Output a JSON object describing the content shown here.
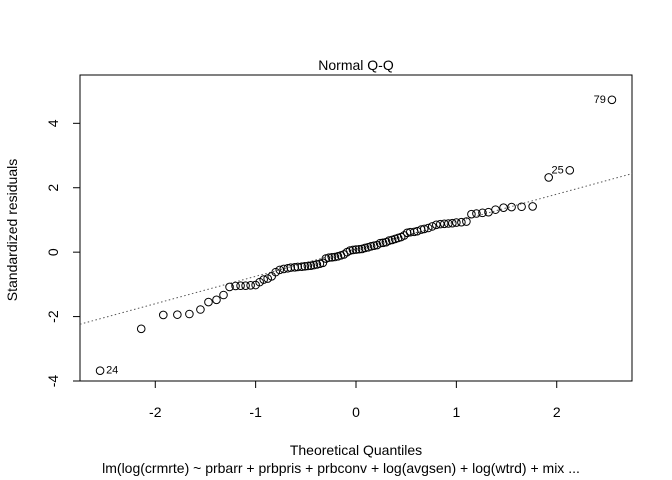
{
  "chart_data": {
    "type": "scatter",
    "title": "Normal Q-Q",
    "xlabel": "Theoretical Quantiles",
    "ylabel": "Standardized residuals",
    "subtitle": "lm(log(crmrte) ~ prbarr + prbpris + prbconv + log(avgsen) + log(wtrd) + mix ...",
    "xlim": [
      -2.75,
      2.75
    ],
    "ylim": [
      -4.0,
      5.5
    ],
    "x_ticks": [
      -2,
      -1,
      0,
      1,
      2
    ],
    "y_ticks": [
      -4,
      -2,
      0,
      2,
      4
    ],
    "grid": false,
    "reference_line": {
      "intercept": 0.1,
      "slope": 0.85,
      "style": "dotted",
      "color": "#555555"
    },
    "labeled_points": [
      {
        "label": "79",
        "x": 2.55,
        "y": 4.73
      },
      {
        "label": "25",
        "x": 2.13,
        "y": 2.54
      },
      {
        "label": "24",
        "x": -2.55,
        "y": -3.68
      }
    ],
    "points": [
      [
        -2.55,
        -3.68
      ],
      [
        -2.14,
        -2.38
      ],
      [
        -1.92,
        -1.95
      ],
      [
        -1.78,
        -1.94
      ],
      [
        -1.66,
        -1.92
      ],
      [
        -1.55,
        -1.78
      ],
      [
        -1.47,
        -1.55
      ],
      [
        -1.39,
        -1.48
      ],
      [
        -1.32,
        -1.33
      ],
      [
        -1.26,
        -1.08
      ],
      [
        -1.2,
        -1.05
      ],
      [
        -1.15,
        -1.04
      ],
      [
        -1.1,
        -1.04
      ],
      [
        -1.05,
        -1.03
      ],
      [
        -1.0,
        -1.02
      ],
      [
        -0.96,
        -0.93
      ],
      [
        -0.92,
        -0.85
      ],
      [
        -0.88,
        -0.82
      ],
      [
        -0.84,
        -0.75
      ],
      [
        -0.8,
        -0.62
      ],
      [
        -0.76,
        -0.55
      ],
      [
        -0.72,
        -0.52
      ],
      [
        -0.68,
        -0.5
      ],
      [
        -0.65,
        -0.48
      ],
      [
        -0.61,
        -0.47
      ],
      [
        -0.58,
        -0.46
      ],
      [
        -0.54,
        -0.45
      ],
      [
        -0.51,
        -0.44
      ],
      [
        -0.48,
        -0.43
      ],
      [
        -0.45,
        -0.42
      ],
      [
        -0.42,
        -0.4
      ],
      [
        -0.39,
        -0.38
      ],
      [
        -0.36,
        -0.36
      ],
      [
        -0.33,
        -0.33
      ],
      [
        -0.3,
        -0.2
      ],
      [
        -0.27,
        -0.17
      ],
      [
        -0.24,
        -0.16
      ],
      [
        -0.21,
        -0.15
      ],
      [
        -0.18,
        -0.13
      ],
      [
        -0.15,
        -0.1
      ],
      [
        -0.12,
        -0.07
      ],
      [
        -0.09,
        0.0
      ],
      [
        -0.06,
        0.05
      ],
      [
        -0.03,
        0.07
      ],
      [
        0.0,
        0.08
      ],
      [
        0.03,
        0.09
      ],
      [
        0.06,
        0.1
      ],
      [
        0.09,
        0.13
      ],
      [
        0.12,
        0.15
      ],
      [
        0.15,
        0.18
      ],
      [
        0.18,
        0.2
      ],
      [
        0.21,
        0.22
      ],
      [
        0.24,
        0.28
      ],
      [
        0.27,
        0.29
      ],
      [
        0.3,
        0.31
      ],
      [
        0.33,
        0.36
      ],
      [
        0.36,
        0.38
      ],
      [
        0.39,
        0.41
      ],
      [
        0.42,
        0.44
      ],
      [
        0.45,
        0.47
      ],
      [
        0.48,
        0.52
      ],
      [
        0.51,
        0.6
      ],
      [
        0.54,
        0.62
      ],
      [
        0.58,
        0.63
      ],
      [
        0.61,
        0.65
      ],
      [
        0.65,
        0.7
      ],
      [
        0.68,
        0.72
      ],
      [
        0.72,
        0.75
      ],
      [
        0.76,
        0.8
      ],
      [
        0.8,
        0.85
      ],
      [
        0.84,
        0.87
      ],
      [
        0.88,
        0.88
      ],
      [
        0.92,
        0.89
      ],
      [
        0.96,
        0.9
      ],
      [
        1.0,
        0.92
      ],
      [
        1.05,
        0.93
      ],
      [
        1.1,
        0.95
      ],
      [
        1.15,
        1.18
      ],
      [
        1.2,
        1.2
      ],
      [
        1.26,
        1.22
      ],
      [
        1.32,
        1.24
      ],
      [
        1.39,
        1.32
      ],
      [
        1.47,
        1.38
      ],
      [
        1.55,
        1.4
      ],
      [
        1.65,
        1.41
      ],
      [
        1.76,
        1.42
      ],
      [
        1.92,
        2.32
      ],
      [
        2.13,
        2.54
      ],
      [
        2.55,
        4.73
      ]
    ]
  }
}
